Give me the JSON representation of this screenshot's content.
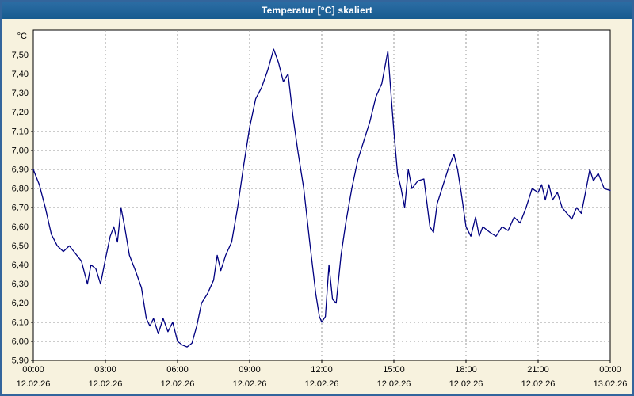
{
  "window": {
    "title": "Temperatur [°C] skaliert"
  },
  "colors": {
    "titlebar": "#1F5F95",
    "background": "#F7F2DE",
    "plot_background": "#FFFFFF",
    "grid": "#999999",
    "frame": "#000000",
    "line": "#000080"
  },
  "chart_data": {
    "type": "line",
    "title": "Temperatur [°C] skaliert",
    "ylabel": "°C",
    "xlabel": "",
    "grid": "dashed",
    "legend": "none",
    "line_color": "#000080",
    "ylim": [
      5.9,
      7.63
    ],
    "xlim": [
      0,
      24
    ],
    "yticks": [
      5.9,
      6.0,
      6.1,
      6.2,
      6.3,
      6.4,
      6.5,
      6.6,
      6.7,
      6.8,
      6.9,
      7.0,
      7.1,
      7.2,
      7.3,
      7.4,
      7.5
    ],
    "ytick_labels": [
      "5,90",
      "6,00",
      "6,10",
      "6,20",
      "6,30",
      "6,40",
      "6,50",
      "6,60",
      "6,70",
      "6,80",
      "6,90",
      "7,00",
      "7,10",
      "7,20",
      "7,30",
      "7,40",
      "7,50"
    ],
    "xticks": [
      0,
      3,
      6,
      9,
      12,
      15,
      18,
      21,
      24
    ],
    "xtick_labels": [
      "00:00",
      "03:00",
      "06:00",
      "09:00",
      "12:00",
      "15:00",
      "18:00",
      "21:00",
      "00:00"
    ],
    "xtick_dates": [
      "12.02.26",
      "12.02.26",
      "12.02.26",
      "12.02.26",
      "12.02.26",
      "12.02.26",
      "12.02.26",
      "12.02.26",
      "13.02.26"
    ],
    "series": [
      {
        "name": "Temperatur [°C]",
        "points": [
          [
            0,
            6.9
          ],
          [
            0.25,
            6.82
          ],
          [
            0.5,
            6.7
          ],
          [
            0.75,
            6.56
          ],
          [
            1,
            6.5
          ],
          [
            1.25,
            6.47
          ],
          [
            1.5,
            6.5
          ],
          [
            1.75,
            6.46
          ],
          [
            2,
            6.42
          ],
          [
            2.25,
            6.3
          ],
          [
            2.4,
            6.4
          ],
          [
            2.6,
            6.38
          ],
          [
            2.8,
            6.3
          ],
          [
            3,
            6.43
          ],
          [
            3.2,
            6.55
          ],
          [
            3.35,
            6.6
          ],
          [
            3.5,
            6.52
          ],
          [
            3.65,
            6.7
          ],
          [
            3.8,
            6.6
          ],
          [
            4,
            6.45
          ],
          [
            4.25,
            6.37
          ],
          [
            4.5,
            6.28
          ],
          [
            4.7,
            6.12
          ],
          [
            4.85,
            6.08
          ],
          [
            5,
            6.12
          ],
          [
            5.2,
            6.04
          ],
          [
            5.4,
            6.12
          ],
          [
            5.6,
            6.05
          ],
          [
            5.8,
            6.1
          ],
          [
            6,
            6.0
          ],
          [
            6.2,
            5.98
          ],
          [
            6.4,
            5.97
          ],
          [
            6.6,
            5.99
          ],
          [
            6.8,
            6.08
          ],
          [
            7,
            6.2
          ],
          [
            7.25,
            6.25
          ],
          [
            7.5,
            6.32
          ],
          [
            7.65,
            6.45
          ],
          [
            7.8,
            6.37
          ],
          [
            8,
            6.45
          ],
          [
            8.25,
            6.52
          ],
          [
            8.5,
            6.7
          ],
          [
            8.75,
            6.92
          ],
          [
            9,
            7.12
          ],
          [
            9.25,
            7.27
          ],
          [
            9.5,
            7.33
          ],
          [
            9.75,
            7.42
          ],
          [
            10,
            7.53
          ],
          [
            10.2,
            7.46
          ],
          [
            10.4,
            7.36
          ],
          [
            10.6,
            7.4
          ],
          [
            10.8,
            7.18
          ],
          [
            11,
            7.0
          ],
          [
            11.25,
            6.8
          ],
          [
            11.5,
            6.52
          ],
          [
            11.75,
            6.25
          ],
          [
            11.9,
            6.13
          ],
          [
            12,
            6.1
          ],
          [
            12.15,
            6.13
          ],
          [
            12.3,
            6.4
          ],
          [
            12.45,
            6.22
          ],
          [
            12.6,
            6.2
          ],
          [
            12.8,
            6.45
          ],
          [
            13,
            6.62
          ],
          [
            13.25,
            6.8
          ],
          [
            13.5,
            6.95
          ],
          [
            13.75,
            7.05
          ],
          [
            14,
            7.15
          ],
          [
            14.25,
            7.28
          ],
          [
            14.5,
            7.35
          ],
          [
            14.75,
            7.52
          ],
          [
            14.85,
            7.35
          ],
          [
            15,
            7.1
          ],
          [
            15.15,
            6.88
          ],
          [
            15.3,
            6.8
          ],
          [
            15.45,
            6.7
          ],
          [
            15.6,
            6.9
          ],
          [
            15.75,
            6.8
          ],
          [
            16,
            6.84
          ],
          [
            16.25,
            6.85
          ],
          [
            16.5,
            6.6
          ],
          [
            16.65,
            6.57
          ],
          [
            16.8,
            6.72
          ],
          [
            17,
            6.8
          ],
          [
            17.25,
            6.9
          ],
          [
            17.5,
            6.98
          ],
          [
            17.65,
            6.9
          ],
          [
            17.8,
            6.78
          ],
          [
            18,
            6.6
          ],
          [
            18.2,
            6.55
          ],
          [
            18.4,
            6.65
          ],
          [
            18.55,
            6.55
          ],
          [
            18.7,
            6.6
          ],
          [
            19,
            6.57
          ],
          [
            19.25,
            6.55
          ],
          [
            19.5,
            6.6
          ],
          [
            19.75,
            6.58
          ],
          [
            20,
            6.65
          ],
          [
            20.25,
            6.62
          ],
          [
            20.5,
            6.7
          ],
          [
            20.75,
            6.8
          ],
          [
            21,
            6.78
          ],
          [
            21.15,
            6.82
          ],
          [
            21.3,
            6.74
          ],
          [
            21.45,
            6.82
          ],
          [
            21.6,
            6.74
          ],
          [
            21.8,
            6.78
          ],
          [
            22,
            6.7
          ],
          [
            22.2,
            6.67
          ],
          [
            22.4,
            6.64
          ],
          [
            22.6,
            6.7
          ],
          [
            22.8,
            6.67
          ],
          [
            23,
            6.8
          ],
          [
            23.15,
            6.9
          ],
          [
            23.3,
            6.84
          ],
          [
            23.5,
            6.88
          ],
          [
            23.75,
            6.8
          ],
          [
            24,
            6.79
          ]
        ]
      }
    ]
  }
}
